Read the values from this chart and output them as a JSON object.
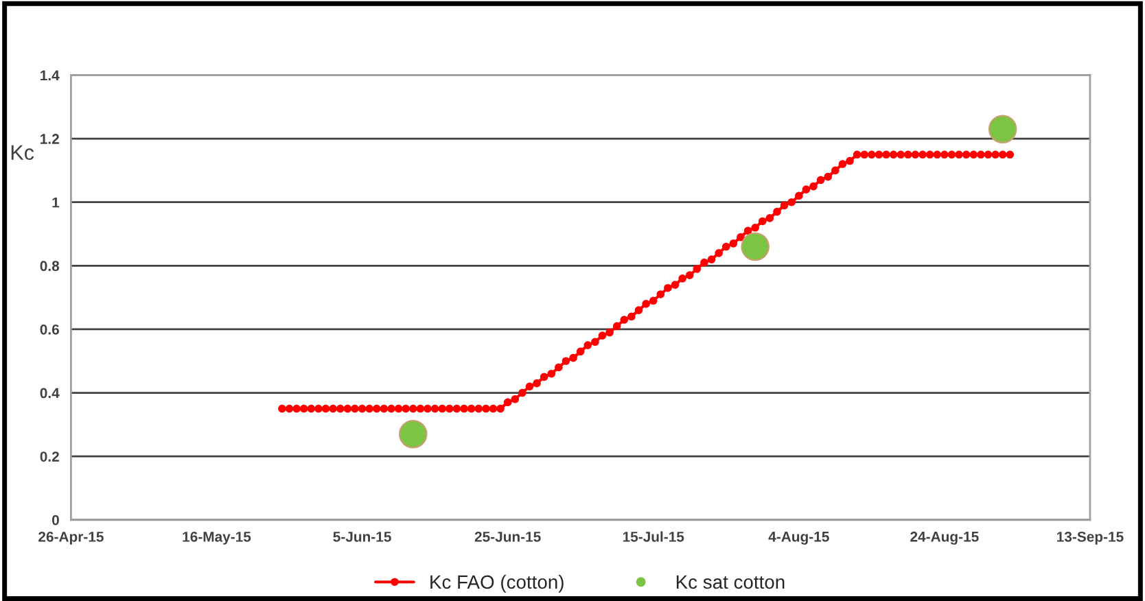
{
  "chart_data": {
    "type": "line",
    "ylabel": "Kc",
    "xlim": [
      "2015-04-26",
      "2015-09-13"
    ],
    "xticks": [
      {
        "value": "2015-04-26",
        "label": "26-Apr-15"
      },
      {
        "value": "2015-05-16",
        "label": "16-May-15"
      },
      {
        "value": "2015-06-05",
        "label": "5-Jun-15"
      },
      {
        "value": "2015-06-25",
        "label": "25-Jun-15"
      },
      {
        "value": "2015-07-15",
        "label": "15-Jul-15"
      },
      {
        "value": "2015-08-04",
        "label": "4-Aug-15"
      },
      {
        "value": "2015-08-24",
        "label": "24-Aug-15"
      },
      {
        "value": "2015-09-13",
        "label": "13-Sep-15"
      }
    ],
    "ylim": [
      0,
      1.4
    ],
    "yticks": [
      0,
      0.2,
      0.4,
      0.6,
      0.8,
      1,
      1.2,
      1.4
    ],
    "grid": "y",
    "legend": "bottom",
    "series": [
      {
        "name": "Kc FAO (cotton)",
        "color": "#ff0000",
        "marker": "circle",
        "line_style": "solid",
        "x": [
          "2015-05-25",
          "2015-05-26",
          "2015-05-27",
          "2015-05-28",
          "2015-05-29",
          "2015-05-30",
          "2015-05-31",
          "2015-06-01",
          "2015-06-02",
          "2015-06-03",
          "2015-06-04",
          "2015-06-05",
          "2015-06-06",
          "2015-06-07",
          "2015-06-08",
          "2015-06-09",
          "2015-06-10",
          "2015-06-11",
          "2015-06-12",
          "2015-06-13",
          "2015-06-14",
          "2015-06-15",
          "2015-06-16",
          "2015-06-17",
          "2015-06-18",
          "2015-06-19",
          "2015-06-20",
          "2015-06-21",
          "2015-06-22",
          "2015-06-23",
          "2015-06-24",
          "2015-06-25",
          "2015-06-26",
          "2015-06-27",
          "2015-06-28",
          "2015-06-29",
          "2015-06-30",
          "2015-07-01",
          "2015-07-02",
          "2015-07-03",
          "2015-07-04",
          "2015-07-05",
          "2015-07-06",
          "2015-07-07",
          "2015-07-08",
          "2015-07-09",
          "2015-07-10",
          "2015-07-11",
          "2015-07-12",
          "2015-07-13",
          "2015-07-14",
          "2015-07-15",
          "2015-07-16",
          "2015-07-17",
          "2015-07-18",
          "2015-07-19",
          "2015-07-20",
          "2015-07-21",
          "2015-07-22",
          "2015-07-23",
          "2015-07-24",
          "2015-07-25",
          "2015-07-26",
          "2015-07-27",
          "2015-07-28",
          "2015-07-29",
          "2015-07-30",
          "2015-07-31",
          "2015-08-01",
          "2015-08-02",
          "2015-08-03",
          "2015-08-04",
          "2015-08-05",
          "2015-08-06",
          "2015-08-07",
          "2015-08-08",
          "2015-08-09",
          "2015-08-10",
          "2015-08-11",
          "2015-08-12",
          "2015-08-13",
          "2015-08-14",
          "2015-08-15",
          "2015-08-16",
          "2015-08-17",
          "2015-08-18",
          "2015-08-19",
          "2015-08-20",
          "2015-08-21",
          "2015-08-22",
          "2015-08-23",
          "2015-08-24",
          "2015-08-25",
          "2015-08-26",
          "2015-08-27",
          "2015-08-28",
          "2015-08-29",
          "2015-08-30",
          "2015-08-31",
          "2015-09-01",
          "2015-09-02"
        ],
        "values": [
          0.35,
          0.35,
          0.35,
          0.35,
          0.35,
          0.35,
          0.35,
          0.35,
          0.35,
          0.35,
          0.35,
          0.35,
          0.35,
          0.35,
          0.35,
          0.35,
          0.35,
          0.35,
          0.35,
          0.35,
          0.35,
          0.35,
          0.35,
          0.35,
          0.35,
          0.35,
          0.35,
          0.35,
          0.35,
          0.35,
          0.35,
          0.37,
          0.38,
          0.4,
          0.42,
          0.43,
          0.45,
          0.46,
          0.48,
          0.5,
          0.51,
          0.53,
          0.55,
          0.56,
          0.58,
          0.59,
          0.61,
          0.63,
          0.64,
          0.66,
          0.68,
          0.69,
          0.71,
          0.73,
          0.74,
          0.76,
          0.77,
          0.79,
          0.81,
          0.82,
          0.84,
          0.86,
          0.87,
          0.89,
          0.91,
          0.92,
          0.94,
          0.95,
          0.97,
          0.99,
          1.0,
          1.02,
          1.04,
          1.05,
          1.07,
          1.08,
          1.1,
          1.12,
          1.13,
          1.15,
          1.15,
          1.15,
          1.15,
          1.15,
          1.15,
          1.15,
          1.15,
          1.15,
          1.15,
          1.15,
          1.15,
          1.15,
          1.15,
          1.15,
          1.15,
          1.15,
          1.15,
          1.15,
          1.15,
          1.15,
          1.15
        ]
      },
      {
        "name": "Kc sat cotton",
        "type": "scatter",
        "color": "#7cc444",
        "marker": "circle",
        "x": [
          "2015-06-12",
          "2015-07-29",
          "2015-09-01"
        ],
        "values": [
          0.27,
          0.86,
          1.23
        ]
      }
    ]
  }
}
